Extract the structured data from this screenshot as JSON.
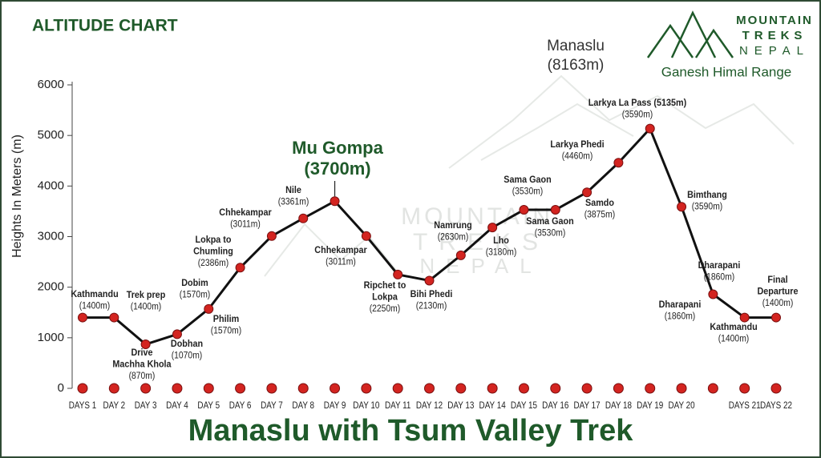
{
  "header": {
    "title": "ALTITUDE CHART",
    "peak_name": "Manaslu",
    "peak_height": "(8163m)",
    "range_name": "Ganesh Himal Range",
    "logo": [
      "MOUNTAIN",
      "TREKS",
      "NEPAL"
    ],
    "watermark": [
      "MOUNTAIN",
      "TREKS",
      "NEPAL"
    ]
  },
  "chart_data": {
    "type": "line",
    "title": "Manaslu with Tsum Valley Trek",
    "y_label": "Heights In Meters (m)",
    "categories": [
      "DAYS 1",
      "DAY 2",
      "DAY 3",
      "DAY 4",
      "DAY 5",
      "DAY 6",
      "DAY 7",
      "DAY 8",
      "DAY 9",
      "DAY 10",
      "DAY 11",
      "DAY 12",
      "DAY 13",
      "DAY 14",
      "DAY 15",
      "DAY 16",
      "DAY 17",
      "DAY 18",
      "DAY 19",
      "DAY 20",
      null,
      "DAYS 21",
      "DAYS 22"
    ],
    "values": [
      1400,
      1400,
      870,
      1070,
      1570,
      2386,
      3011,
      3361,
      3700,
      3011,
      2250,
      2130,
      2630,
      3180,
      3530,
      3530,
      3875,
      4460,
      5135,
      3590,
      1860,
      1400,
      1400
    ],
    "color": "#111111",
    "marker_color": "#d32420",
    "ylim": [
      0,
      6000
    ],
    "yticks": [
      0,
      1000,
      2000,
      3000,
      4000,
      5000,
      6000
    ],
    "annotations": [
      {
        "lines": [
          "Kathmandu",
          "(1400m)"
        ]
      },
      {
        "lines": [
          "Trek prep",
          "(1400m)"
        ]
      },
      {
        "lines": [
          "Drive",
          "Machha Khola",
          "(870m)"
        ]
      },
      {
        "lines": [
          "Dobhan",
          "(1070m)"
        ]
      },
      {
        "lines": [
          "Dobim",
          "(1570m)"
        ]
      },
      {
        "lines": [
          "Philim",
          "(1570m)"
        ]
      },
      {
        "lines": [
          "Lokpa to",
          "Chumling",
          "(2386m)"
        ]
      },
      {
        "lines": [
          "Chhekampar",
          "(3011m)"
        ]
      },
      {
        "lines": [
          "Nile",
          "(3361m)"
        ]
      },
      {
        "lines": [
          "Mu Gompa",
          "(3700m)"
        ]
      },
      {
        "lines": [
          "Chhekampar",
          "(3011m)"
        ]
      },
      {
        "lines": [
          "Ripchet to",
          "Lokpa",
          "(2250m)"
        ]
      },
      {
        "lines": [
          "Bihi Phedi",
          "(2130m)"
        ]
      },
      {
        "lines": [
          "Namrung",
          "(2630m)"
        ]
      },
      {
        "lines": [
          "Lho",
          "(3180m)"
        ]
      },
      {
        "lines": [
          "Sama Gaon",
          "(3530m)"
        ]
      },
      {
        "lines": [
          "Sama Gaon",
          "(3530m)"
        ]
      },
      {
        "lines": [
          "Samdo",
          "(3875m)"
        ]
      },
      {
        "lines": [
          "Larkya Phedi",
          "(4460m)"
        ]
      },
      {
        "lines": [
          "Larkya La Pass (5135m)",
          "(3590m)"
        ]
      },
      {
        "lines": [
          "Bimthang",
          "(3590m)"
        ]
      },
      {
        "lines": [
          "Dharapani",
          "(1860m)"
        ]
      },
      {
        "lines": [
          "Dharapani",
          "(1860m)"
        ]
      },
      {
        "lines": [
          "Kathmandu",
          "(1400m)"
        ]
      },
      {
        "lines": [
          "Final",
          "Departure",
          "(1400m)"
        ]
      }
    ]
  }
}
